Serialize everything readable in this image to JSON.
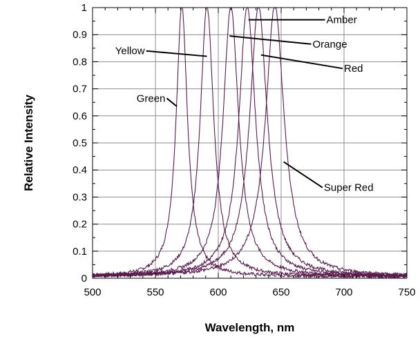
{
  "chart_data": {
    "type": "line",
    "title": "",
    "xlabel": "Wavelength, nm",
    "ylabel": "Relative Intensity",
    "xlim": [
      500,
      750
    ],
    "ylim": [
      0,
      1
    ],
    "x_ticks": [
      500,
      550,
      600,
      650,
      700,
      750
    ],
    "x_tick_labels": [
      "500",
      "550",
      "600",
      "650",
      "700",
      "750"
    ],
    "y_ticks": [
      0,
      0.1,
      0.2,
      0.3,
      0.4,
      0.5,
      0.6,
      0.7,
      0.8,
      0.9,
      1
    ],
    "y_tick_labels": [
      "0",
      "0.1",
      "0.2",
      "0.3",
      "0.4",
      "0.5",
      "0.6",
      "0.7",
      "0.8",
      "0.9",
      "1"
    ],
    "grid": true,
    "line_color": "#5b1a4d",
    "series": [
      {
        "name": "Green",
        "peak_nm": 571,
        "fwhm_nm": 11
      },
      {
        "name": "Yellow",
        "peak_nm": 591,
        "fwhm_nm": 13
      },
      {
        "name": "Orange",
        "peak_nm": 610,
        "fwhm_nm": 15
      },
      {
        "name": "Amber",
        "peak_nm": 623,
        "fwhm_nm": 16
      },
      {
        "name": "Red",
        "peak_nm": 632,
        "fwhm_nm": 17
      },
      {
        "name": "Super Red",
        "peak_nm": 645,
        "fwhm_nm": 18
      }
    ],
    "annotations": [
      {
        "text": "Green",
        "x": 535,
        "y": 0.665,
        "arrow_to_x": 567,
        "arrow_to_y": 0.635
      },
      {
        "text": "Yellow",
        "x": 518,
        "y": 0.84,
        "arrow_to_x": 591,
        "arrow_to_y": 0.82
      },
      {
        "text": "Orange",
        "x": 675,
        "y": 0.865,
        "arrow_to_x": 609,
        "arrow_to_y": 0.895
      },
      {
        "text": "Amber",
        "x": 686,
        "y": 0.955,
        "arrow_to_x": 624,
        "arrow_to_y": 0.955
      },
      {
        "text": "Red",
        "x": 700,
        "y": 0.775,
        "arrow_to_x": 634,
        "arrow_to_y": 0.825
      },
      {
        "text": "Super Red",
        "x": 684,
        "y": 0.335,
        "arrow_to_x": 652,
        "arrow_to_y": 0.43
      }
    ]
  }
}
